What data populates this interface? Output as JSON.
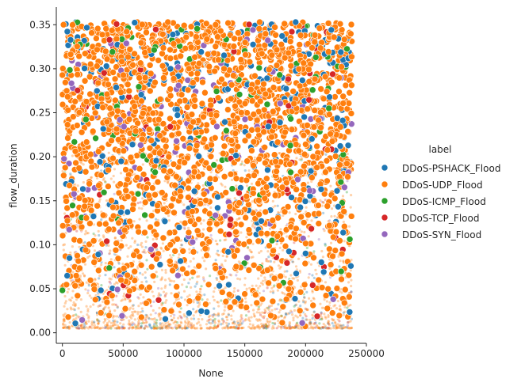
{
  "chart_data": {
    "type": "scatter",
    "xlabel": "None",
    "ylabel": "flow_duration",
    "xlim": [
      -5000,
      250000
    ],
    "ylim": [
      -0.012,
      0.37
    ],
    "x_ticks": [
      0,
      50000,
      100000,
      150000,
      200000,
      250000
    ],
    "x_tick_labels": [
      "0",
      "50000",
      "100000",
      "150000",
      "200000",
      "250000"
    ],
    "y_ticks": [
      0.0,
      0.05,
      0.1,
      0.15,
      0.2,
      0.25,
      0.3,
      0.35
    ],
    "y_tick_labels": [
      "0.00",
      "0.05",
      "0.10",
      "0.15",
      "0.20",
      "0.25",
      "0.30",
      "0.35"
    ],
    "grid": false,
    "legend": {
      "title": "label",
      "position": "right",
      "entries": [
        "DDoS-PSHACK_Flood",
        "DDoS-UDP_Flood",
        "DDoS-ICMP_Flood",
        "DDoS-TCP_Flood",
        "DDoS-SYN_Flood"
      ]
    },
    "series": [
      {
        "name": "DDoS-PSHACK_Flood",
        "color": "#1f77b4",
        "x_range": [
          0,
          238000
        ],
        "y_range": [
          0.005,
          0.353
        ],
        "share": 0.1
      },
      {
        "name": "DDoS-UDP_Flood",
        "color": "#ff7f0e",
        "x_range": [
          0,
          238000
        ],
        "y_range": [
          0.005,
          0.353
        ],
        "share": 0.78
      },
      {
        "name": "DDoS-ICMP_Flood",
        "color": "#2ca02c",
        "x_range": [
          0,
          238000
        ],
        "y_range": [
          0.005,
          0.353
        ],
        "share": 0.04
      },
      {
        "name": "DDoS-TCP_Flood",
        "color": "#d62728",
        "x_range": [
          0,
          238000
        ],
        "y_range": [
          0.005,
          0.353
        ],
        "share": 0.03
      },
      {
        "name": "DDoS-SYN_Flood",
        "color": "#9467bd",
        "x_range": [
          0,
          238000
        ],
        "y_range": [
          0.005,
          0.353
        ],
        "share": 0.05
      }
    ]
  }
}
